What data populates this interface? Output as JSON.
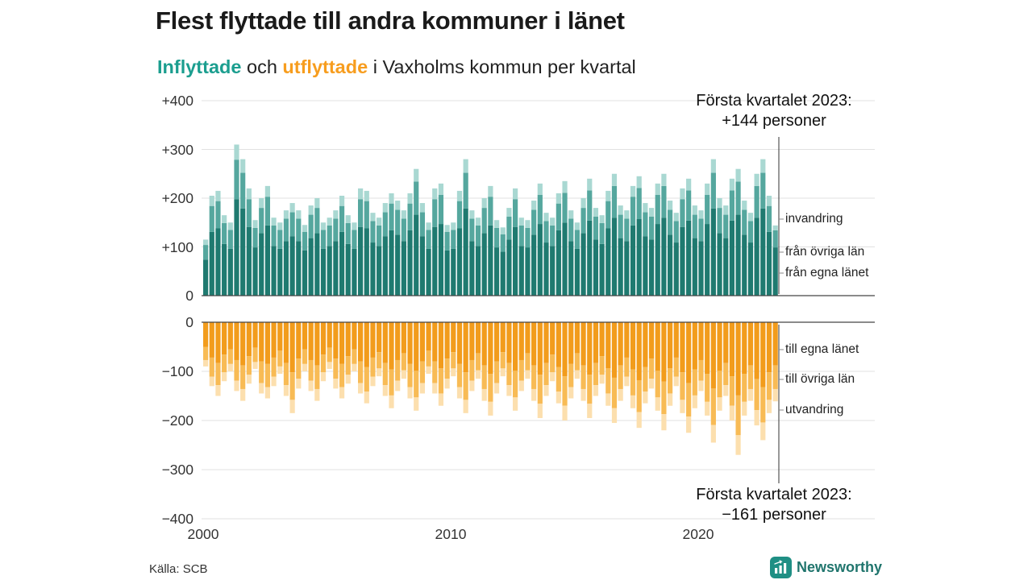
{
  "header": {
    "title": "Flest flyttade till andra kommuner i länet",
    "subtitle_parts": [
      {
        "text": "Inflyttade"
      },
      {
        "text": " och "
      },
      {
        "text": "utflyttade"
      },
      {
        "text": " i Vaxholms kommun per kvartal"
      }
    ]
  },
  "annotations": {
    "top": {
      "line1": "Första kvartalet 2023:",
      "line2": "+144 personer"
    },
    "bottom": {
      "line1": "Första kvartalet 2023:",
      "line2": "−161 personer"
    }
  },
  "axes": {
    "top_ticks": [
      "+400",
      "+300",
      "+200",
      "+100",
      "0"
    ],
    "bottom_ticks": [
      "0",
      "−100",
      "−200",
      "−300",
      "−400"
    ],
    "x_ticks": [
      {
        "label": "2000",
        "quarter_index": 0
      },
      {
        "label": "2010",
        "quarter_index": 40
      },
      {
        "label": "2020",
        "quarter_index": 80
      }
    ]
  },
  "right_labels": {
    "inflow": [
      "invandring",
      "från övriga län",
      "från egna länet"
    ],
    "outflow": [
      "till egna länet",
      "till övriga län",
      "utvandring"
    ]
  },
  "source": "Källa: SCB",
  "logo": {
    "text": "Newsworthy",
    "icon": "newsworthy-chart-icon"
  },
  "colors": {
    "accent_teal": "#1b9e8f",
    "accent_orange": "#f79d1e",
    "grid": "#e1e1e1",
    "axis": "#444444",
    "annotation_line": "#333333",
    "leader": "#888888",
    "background": "#ffffff",
    "logo_teal": "#1f8f84",
    "logo_text": "#20756d"
  },
  "chart_data": {
    "type": "bar",
    "stacked": true,
    "mirrored": true,
    "title": "Inflyttade och utflyttade i Vaxholms kommun per kvartal",
    "unit": "personer",
    "x_start": "2000 Q1",
    "x_end": "2023 Q1",
    "n_quarters": 93,
    "ylim_top": [
      0,
      400
    ],
    "ylim_bottom": [
      -400,
      0
    ],
    "highlight": {
      "quarter": "2023 Q1",
      "inflow_total": 144,
      "outflow_total": -161
    },
    "series_inflow": [
      {
        "name": "från egna länet",
        "color": "#1f7a70",
        "values": [
          74,
          131,
          138,
          106,
          96,
          198,
          179,
          141,
          99,
          128,
          144,
          102,
          96,
          112,
          122,
          112,
          93,
          118,
          128,
          96,
          102,
          112,
          131,
          106,
          96,
          141,
          138,
          109,
          102,
          122,
          134,
          125,
          112,
          134,
          166,
          122,
          96,
          141,
          147,
          93,
          96,
          138,
          179,
          112,
          102,
          128,
          144,
          99,
          90,
          115,
          141,
          102,
          99,
          125,
          147,
          109,
          102,
          134,
          150,
          112,
          96,
          128,
          154,
          115,
          106,
          138,
          160,
          118,
          112,
          144,
          157,
          122,
          115,
          147,
          160,
          125,
          109,
          141,
          154,
          118,
          112,
          147,
          179,
          128,
          118,
          154,
          166,
          125,
          109,
          160,
          179,
          131,
          99
        ]
      },
      {
        "name": "från övriga län",
        "color": "#55a79e",
        "values": [
          30,
          53,
          56,
          43,
          39,
          81,
          73,
          57,
          40,
          52,
          59,
          42,
          39,
          46,
          49,
          46,
          38,
          48,
          52,
          39,
          42,
          46,
          53,
          43,
          39,
          57,
          56,
          44,
          42,
          49,
          55,
          51,
          46,
          55,
          68,
          49,
          39,
          57,
          60,
          38,
          39,
          56,
          73,
          46,
          42,
          52,
          59,
          40,
          36,
          47,
          57,
          42,
          40,
          51,
          60,
          44,
          42,
          55,
          61,
          46,
          39,
          52,
          62,
          47,
          43,
          56,
          65,
          48,
          46,
          59,
          64,
          49,
          47,
          60,
          65,
          51,
          44,
          57,
          62,
          48,
          46,
          60,
          73,
          52,
          48,
          62,
          68,
          51,
          44,
          65,
          73,
          53,
          35
        ]
      },
      {
        "name": "invandring",
        "color": "#a9d8d2",
        "values": [
          11,
          21,
          21,
          16,
          15,
          31,
          28,
          22,
          16,
          20,
          22,
          16,
          15,
          17,
          19,
          17,
          14,
          19,
          20,
          15,
          16,
          17,
          21,
          16,
          15,
          22,
          21,
          17,
          16,
          19,
          21,
          19,
          17,
          21,
          26,
          19,
          15,
          22,
          23,
          14,
          15,
          21,
          28,
          17,
          16,
          20,
          22,
          16,
          14,
          18,
          22,
          16,
          16,
          19,
          23,
          17,
          16,
          21,
          24,
          17,
          15,
          20,
          24,
          18,
          16,
          21,
          25,
          19,
          17,
          22,
          24,
          19,
          18,
          23,
          25,
          19,
          17,
          22,
          24,
          19,
          17,
          23,
          28,
          20,
          19,
          24,
          26,
          19,
          17,
          25,
          28,
          21,
          10
        ]
      }
    ],
    "series_outflow": [
      {
        "name": "till egna länet",
        "color": "#f29c1c",
        "values": [
          50,
          72,
          83,
          66,
          55,
          77,
          88,
          69,
          52,
          80,
          85,
          72,
          58,
          83,
          102,
          74,
          55,
          77,
          88,
          66,
          52,
          74,
          85,
          69,
          55,
          80,
          91,
          72,
          61,
          83,
          96,
          77,
          63,
          85,
          99,
          80,
          58,
          80,
          94,
          74,
          61,
          85,
          102,
          77,
          63,
          88,
          105,
          80,
          61,
          83,
          99,
          77,
          63,
          88,
          107,
          83,
          66,
          91,
          110,
          85,
          63,
          88,
          107,
          83,
          69,
          94,
          113,
          88,
          72,
          96,
          118,
          91,
          74,
          99,
          121,
          94,
          72,
          102,
          124,
          96,
          77,
          105,
          135,
          99,
          83,
          110,
          149,
          105,
          88,
          116,
          132,
          102,
          88
        ]
      },
      {
        "name": "till övriga län",
        "color": "#f8bb55",
        "values": [
          27,
          39,
          45,
          36,
          30,
          42,
          48,
          38,
          29,
          44,
          47,
          39,
          32,
          45,
          56,
          41,
          30,
          42,
          48,
          36,
          29,
          41,
          47,
          38,
          30,
          44,
          50,
          39,
          33,
          45,
          53,
          42,
          35,
          47,
          54,
          44,
          32,
          44,
          51,
          41,
          33,
          47,
          56,
          42,
          35,
          48,
          57,
          44,
          33,
          45,
          54,
          42,
          35,
          48,
          59,
          45,
          36,
          50,
          60,
          47,
          35,
          48,
          59,
          45,
          38,
          51,
          62,
          48,
          39,
          53,
          65,
          50,
          41,
          54,
          66,
          51,
          39,
          56,
          68,
          53,
          42,
          57,
          74,
          54,
          45,
          60,
          81,
          57,
          48,
          63,
          72,
          56,
          48
        ]
      },
      {
        "name": "utvandring",
        "color": "#fcdfae",
        "values": [
          13,
          19,
          22,
          18,
          15,
          21,
          24,
          18,
          14,
          21,
          23,
          19,
          15,
          22,
          27,
          20,
          15,
          21,
          24,
          18,
          14,
          20,
          23,
          18,
          15,
          21,
          24,
          19,
          16,
          22,
          26,
          21,
          17,
          23,
          27,
          21,
          15,
          21,
          25,
          20,
          16,
          23,
          27,
          21,
          17,
          24,
          28,
          21,
          16,
          22,
          27,
          21,
          17,
          24,
          29,
          22,
          18,
          24,
          30,
          23,
          17,
          24,
          29,
          22,
          18,
          25,
          30,
          24,
          19,
          26,
          32,
          24,
          20,
          27,
          33,
          25,
          19,
          27,
          33,
          26,
          21,
          28,
          36,
          27,
          22,
          30,
          40,
          28,
          24,
          31,
          36,
          27,
          25
        ]
      }
    ]
  }
}
